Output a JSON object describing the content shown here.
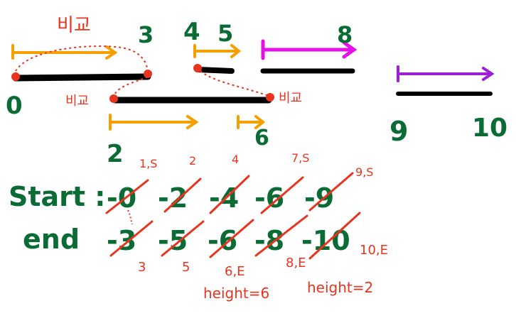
{
  "colors": {
    "green": "#0a6b34",
    "red": "#e8341e",
    "orange": "#f5a000",
    "magenta": "#e60fe6",
    "purple": "#9a1fd6",
    "black": "#000000"
  },
  "labels": {
    "compare": "비교",
    "n0": "0",
    "n2": "2",
    "n3": "3",
    "n4": "4",
    "n5": "5",
    "n6": "6",
    "n8": "8",
    "n9": "9",
    "n10": "10"
  },
  "table": {
    "start_label": "Start :",
    "end_label": "end",
    "start_values": [
      "-0",
      "-2",
      "-4",
      "-6",
      "-9"
    ],
    "end_values": [
      "-3",
      "-5",
      "-6",
      "-8",
      "-10"
    ],
    "start_notes": [
      "1,S",
      "2",
      "4",
      "7,S",
      "9,S"
    ],
    "end_notes": [
      "3",
      "5",
      "6,E",
      "8,E",
      "10,E"
    ]
  },
  "heights": [
    "height=6",
    "height=2"
  ]
}
